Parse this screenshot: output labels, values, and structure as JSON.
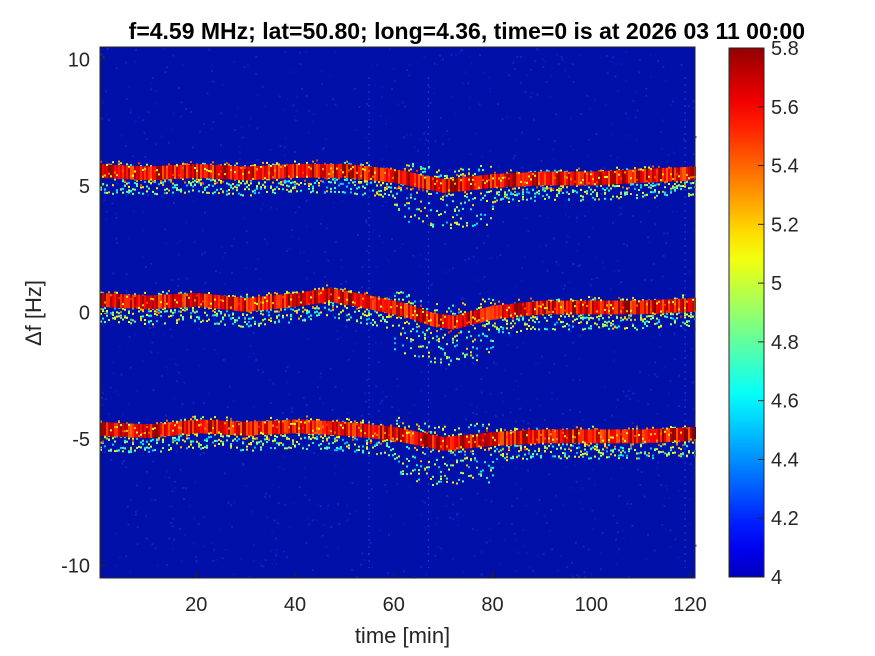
{
  "chart_data": {
    "type": "heatmap",
    "title": "f=4.59 MHz;  lat=50.80; long=4.36, time=0 is at 2026 03 11 00:00",
    "xlabel": "time [min]",
    "ylabel": "Δf [Hz]",
    "xlim": [
      0.5,
      121
    ],
    "ylim": [
      -10.5,
      10.5
    ],
    "xticks": [
      20,
      40,
      60,
      80,
      100,
      120
    ],
    "yticks": [
      10,
      5,
      0,
      -5,
      -10
    ],
    "ytick_labels": [
      "10",
      "5",
      "0",
      "-5",
      "-10"
    ],
    "colorbar": {
      "range": [
        4,
        5.8
      ],
      "ticks": [
        5.8,
        5.6,
        5.4,
        5.2,
        5,
        4.8,
        4.6,
        4.4,
        4.2,
        4
      ],
      "tick_labels": [
        "5.8",
        "5.6",
        "5.4",
        "5.2",
        "5",
        "4.8",
        "4.6",
        "4.4",
        "4.2",
        "4"
      ],
      "colormap": "jet"
    },
    "traces": [
      {
        "time_min": [
          0,
          10,
          20,
          30,
          40,
          50,
          60,
          65,
          70,
          80,
          90,
          100,
          110,
          121
        ],
        "doppler_hz": [
          5.6,
          5.5,
          5.6,
          5.5,
          5.6,
          5.6,
          5.4,
          5.2,
          5.0,
          5.2,
          5.3,
          5.3,
          5.4,
          5.5
        ]
      },
      {
        "time_min": [
          0,
          10,
          20,
          30,
          40,
          47,
          55,
          62,
          68,
          72,
          80,
          90,
          100,
          110,
          121
        ],
        "doppler_hz": [
          0.5,
          0.4,
          0.5,
          0.3,
          0.5,
          0.7,
          0.4,
          0.1,
          -0.3,
          -0.4,
          0.0,
          0.2,
          0.2,
          0.2,
          0.3
        ]
      },
      {
        "time_min": [
          0,
          10,
          20,
          30,
          40,
          50,
          60,
          65,
          70,
          80,
          90,
          100,
          110,
          121
        ],
        "doppler_hz": [
          -4.6,
          -4.7,
          -4.5,
          -4.6,
          -4.5,
          -4.6,
          -4.8,
          -5.0,
          -5.2,
          -5.0,
          -4.9,
          -4.9,
          -4.9,
          -4.8
        ]
      }
    ]
  },
  "colors": {
    "background_low": "#0010A8",
    "trace_core": "#AA0000"
  }
}
